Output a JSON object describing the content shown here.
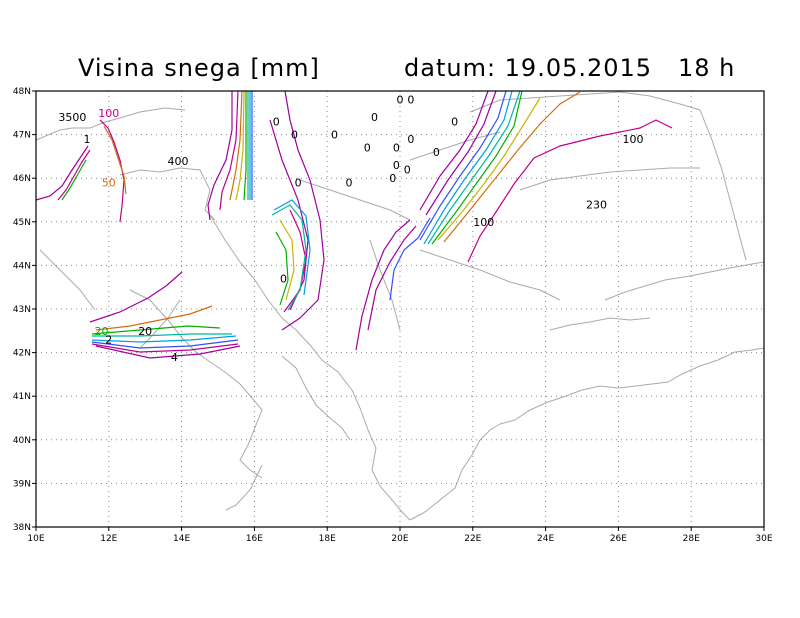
{
  "title": {
    "left": "Visina snega [mm]",
    "right": "datum: 19.05.2015   18 h"
  },
  "axes": {
    "x_ticks": [
      "10E",
      "12E",
      "14E",
      "16E",
      "18E",
      "20E",
      "22E",
      "24E",
      "26E",
      "28E",
      "30E"
    ],
    "y_ticks": [
      "48N",
      "47N",
      "46N",
      "45N",
      "44N",
      "43N",
      "42N",
      "41N",
      "40N",
      "39N",
      "38N"
    ],
    "x_range": [
      10,
      30
    ],
    "y_range": [
      38,
      48
    ],
    "grid": true
  },
  "contour_labels": [
    {
      "text": "3500",
      "lon": 11.0,
      "lat": 47.4,
      "color": "#000000"
    },
    {
      "text": "1",
      "lon": 11.4,
      "lat": 46.9,
      "color": "#000000"
    },
    {
      "text": "100",
      "lon": 12.0,
      "lat": 47.5,
      "color": "#c0008a"
    },
    {
      "text": "50",
      "lon": 12.0,
      "lat": 45.9,
      "color": "#d07010"
    },
    {
      "text": "400",
      "lon": 13.9,
      "lat": 46.4,
      "color": "#000000"
    },
    {
      "text": "0",
      "lon": 16.6,
      "lat": 47.3,
      "color": "#000000"
    },
    {
      "text": "0",
      "lon": 17.1,
      "lat": 47.0,
      "color": "#000000"
    },
    {
      "text": "0",
      "lon": 17.2,
      "lat": 45.9,
      "color": "#000000"
    },
    {
      "text": "0",
      "lon": 16.8,
      "lat": 43.7,
      "color": "#000000"
    },
    {
      "text": "0",
      "lon": 18.2,
      "lat": 47.0,
      "color": "#000000"
    },
    {
      "text": "0",
      "lon": 18.6,
      "lat": 45.9,
      "color": "#000000"
    },
    {
      "text": "0",
      "lon": 19.3,
      "lat": 47.4,
      "color": "#000000"
    },
    {
      "text": "0",
      "lon": 19.1,
      "lat": 46.7,
      "color": "#000000"
    },
    {
      "text": "0",
      "lon": 19.8,
      "lat": 46.0,
      "color": "#000000"
    },
    {
      "text": "0",
      "lon": 19.9,
      "lat": 46.3,
      "color": "#000000"
    },
    {
      "text": "0",
      "lon": 20.2,
      "lat": 46.2,
      "color": "#000000"
    },
    {
      "text": "0",
      "lon": 20.3,
      "lat": 46.9,
      "color": "#000000"
    },
    {
      "text": "0",
      "lon": 19.9,
      "lat": 46.7,
      "color": "#000000"
    },
    {
      "text": "0",
      "lon": 20.0,
      "lat": 47.8,
      "color": "#000000"
    },
    {
      "text": "0",
      "lon": 20.3,
      "lat": 47.8,
      "color": "#000000"
    },
    {
      "text": "0",
      "lon": 21.0,
      "lat": 46.6,
      "color": "#000000"
    },
    {
      "text": "0",
      "lon": 21.5,
      "lat": 47.3,
      "color": "#000000"
    },
    {
      "text": "100",
      "lon": 22.3,
      "lat": 45.0,
      "color": "#000000"
    },
    {
      "text": "100",
      "lon": 26.4,
      "lat": 46.9,
      "color": "#000000"
    },
    {
      "text": "230",
      "lon": 25.4,
      "lat": 45.4,
      "color": "#000000"
    },
    {
      "text": "20",
      "lon": 11.8,
      "lat": 42.5,
      "color": "#00b000"
    },
    {
      "text": "20",
      "lon": 13.0,
      "lat": 42.5,
      "color": "#000000"
    },
    {
      "text": "2",
      "lon": 12.0,
      "lat": 42.3,
      "color": "#000000"
    },
    {
      "text": "4",
      "lon": 13.8,
      "lat": 41.9,
      "color": "#000000"
    }
  ],
  "colors": {
    "coast": "#aaaaaa",
    "grid": "#888888",
    "contours": [
      "#a000a0",
      "#c0008a",
      "#d07010",
      "#c8b400",
      "#00b000",
      "#00b8a0",
      "#00a0e0",
      "#3050ff"
    ]
  }
}
